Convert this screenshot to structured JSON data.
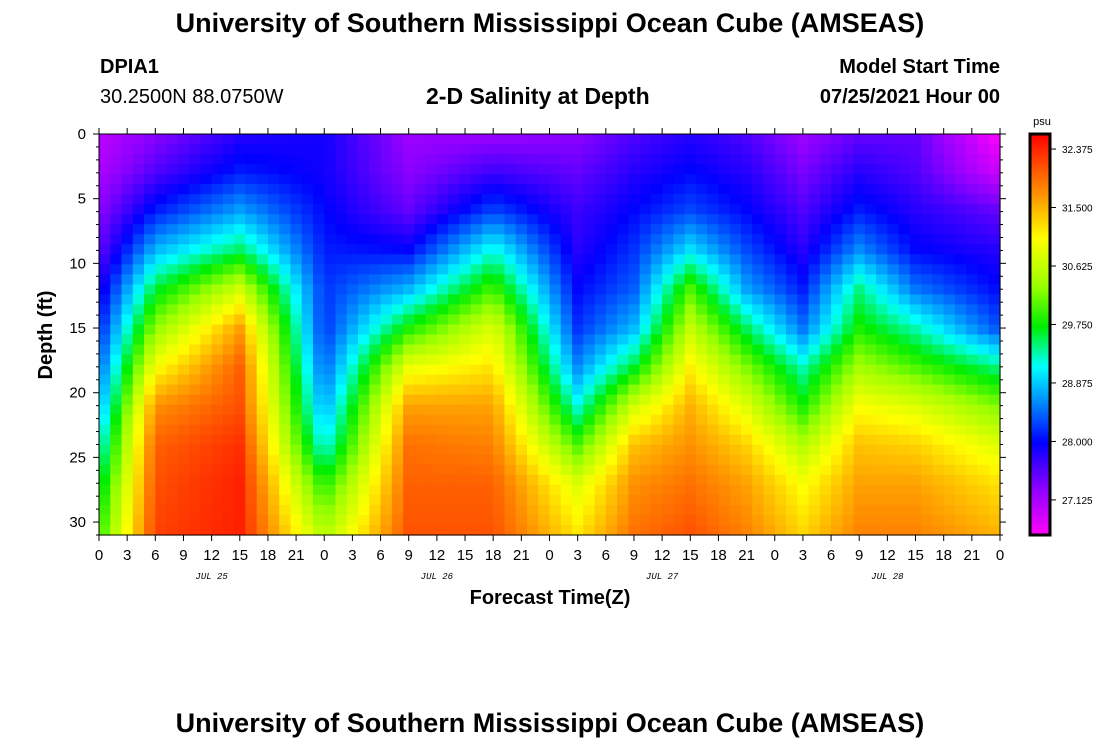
{
  "header": {
    "title": "University of Southern Mississippi Ocean Cube (AMSEAS)",
    "station_id": "DPIA1",
    "coordinates": "30.2500N  88.0750W",
    "plot_title": "2-D Salinity at Depth",
    "model_start_label": "Model Start Time",
    "model_start_value": "07/25/2021 Hour 00"
  },
  "footer": {
    "title": "University of Southern Mississippi Ocean Cube (AMSEAS)"
  },
  "chart_data": {
    "type": "heatmap",
    "title": "2-D Salinity at Depth",
    "xlabel": "Forecast Time(Z)",
    "ylabel": "Depth (ft)",
    "x_hours_range": [
      0,
      96
    ],
    "x_tick_step_hours": 3,
    "x_tick_labels": [
      "0",
      "3",
      "6",
      "9",
      "12",
      "15",
      "18",
      "21",
      "0",
      "3",
      "6",
      "9",
      "12",
      "15",
      "18",
      "21",
      "0",
      "3",
      "6",
      "9",
      "12",
      "15",
      "18",
      "21",
      "0",
      "3",
      "6",
      "9",
      "12",
      "15",
      "18",
      "21",
      "0"
    ],
    "day_labels": [
      {
        "label": "JUL 25",
        "hour": 12
      },
      {
        "label": "JUL 26",
        "hour": 36
      },
      {
        "label": "JUL 27",
        "hour": 60
      },
      {
        "label": "JUL 28",
        "hour": 84
      }
    ],
    "ylim": [
      0,
      31
    ],
    "y_ticks": [
      0,
      5,
      10,
      15,
      20,
      25,
      30
    ],
    "colorbar": {
      "units": "psu",
      "min": 26.6,
      "max": 32.6,
      "tick_values": [
        32.375,
        31.5,
        30.625,
        29.75,
        28.875,
        28.0,
        27.125
      ],
      "tick_labels": [
        "32.375",
        "31.500",
        "30.625",
        "29.750",
        "28.875",
        "28.000",
        "27.125"
      ]
    },
    "depth_levels_ft": [
      0,
      3,
      6,
      9,
      12,
      15,
      18,
      21,
      24,
      27,
      31
    ],
    "profile_hours": [
      0,
      6,
      15,
      24,
      33,
      42,
      51,
      57,
      63,
      69,
      75,
      81,
      87,
      96
    ],
    "salinity_psu": [
      [
        27.0,
        27.3,
        27.8,
        27.9,
        27.2,
        27.2,
        27.3,
        27.6,
        27.8,
        27.6,
        27.2,
        27.5,
        27.5,
        26.6
      ],
      [
        27.1,
        27.6,
        28.1,
        27.9,
        27.3,
        27.7,
        27.5,
        27.8,
        28.0,
        27.8,
        27.4,
        27.8,
        27.6,
        26.9
      ],
      [
        27.3,
        28.1,
        28.7,
        28.0,
        27.5,
        28.3,
        27.7,
        28.0,
        28.3,
        28.0,
        27.6,
        28.1,
        27.8,
        27.5
      ],
      [
        27.5,
        28.8,
        29.5,
        28.1,
        28.0,
        29.2,
        27.8,
        28.2,
        29.0,
        28.3,
        27.8,
        28.6,
        28.0,
        27.8
      ],
      [
        27.8,
        29.6,
        30.7,
        28.2,
        28.8,
        30.0,
        28.0,
        28.4,
        30.0,
        28.7,
        28.1,
        29.4,
        28.5,
        28.0
      ],
      [
        28.1,
        30.3,
        31.6,
        28.2,
        29.8,
        30.8,
        28.2,
        28.8,
        30.6,
        29.5,
        28.5,
        29.8,
        29.3,
        28.3
      ],
      [
        28.4,
        31.0,
        32.0,
        28.4,
        30.9,
        31.2,
        28.6,
        29.6,
        31.1,
        30.2,
        29.3,
        30.4,
        30.0,
        29.4
      ],
      [
        28.7,
        31.7,
        32.1,
        28.7,
        31.6,
        31.6,
        29.2,
        30.7,
        31.5,
        30.8,
        29.8,
        31.0,
        30.8,
        30.2
      ],
      [
        29.1,
        32.0,
        32.3,
        29.1,
        31.9,
        31.8,
        30.0,
        31.4,
        31.7,
        31.3,
        30.5,
        31.4,
        31.3,
        30.8
      ],
      [
        29.5,
        32.1,
        32.4,
        29.8,
        32.0,
        32.0,
        30.8,
        31.7,
        31.9,
        31.6,
        31.0,
        31.6,
        31.6,
        31.2
      ],
      [
        29.9,
        32.2,
        32.4,
        30.5,
        32.1,
        32.1,
        31.2,
        31.9,
        32.1,
        31.8,
        31.3,
        31.8,
        31.8,
        31.5
      ]
    ]
  }
}
